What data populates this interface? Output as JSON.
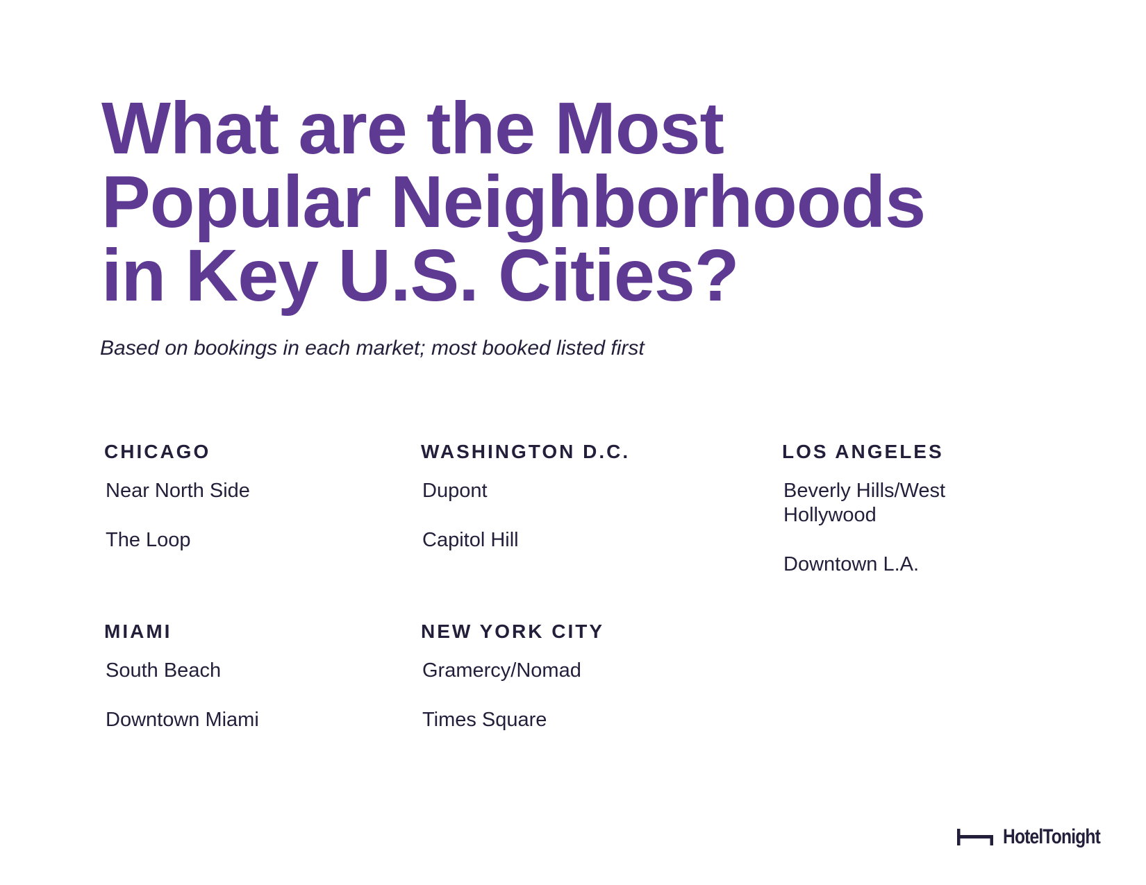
{
  "title": {
    "line1": "What are the Most",
    "line2": "Popular Neighborhoods",
    "line3": "in Key U.S. Cities?"
  },
  "subtitle": "Based on bookings in each market; most booked listed first",
  "cities": {
    "chicago": {
      "name": "CHICAGO",
      "neighborhoods": [
        "Near North Side",
        "The Loop"
      ]
    },
    "washington": {
      "name": "WASHINGTON D.C.",
      "neighborhoods": [
        "Dupont",
        "Capitol Hill"
      ]
    },
    "los_angeles": {
      "name": "LOS ANGELES",
      "neighborhoods": [
        "Beverly Hills/West Hollywood",
        "Downtown L.A."
      ]
    },
    "miami": {
      "name": "MIAMI",
      "neighborhoods": [
        "South Beach",
        "Downtown Miami"
      ]
    },
    "new_york": {
      "name": "NEW YORK CITY",
      "neighborhoods": [
        "Gramercy/Nomad",
        "Times Square"
      ]
    }
  },
  "logo": {
    "text": "HotelTonight",
    "icon": "bed-icon"
  },
  "colors": {
    "title": "#5f3a93",
    "text": "#231f3a",
    "background": "#ffffff"
  }
}
